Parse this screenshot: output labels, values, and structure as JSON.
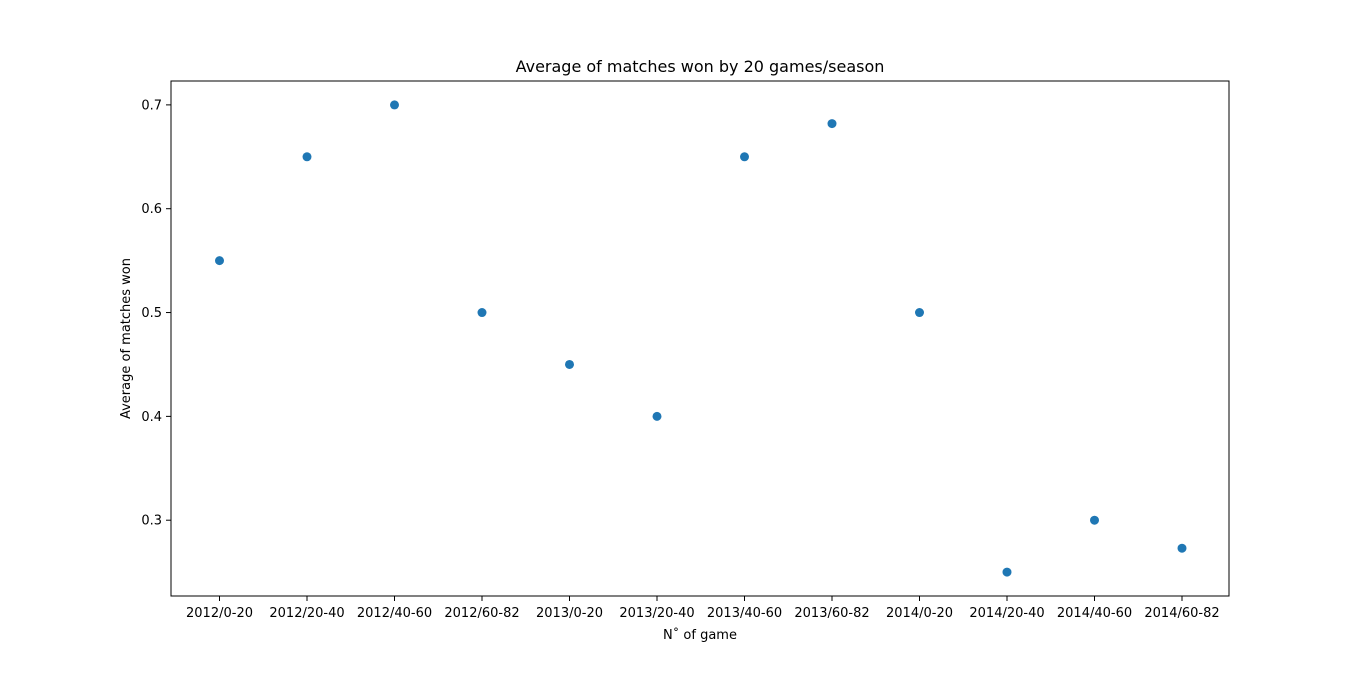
{
  "chart_data": {
    "type": "scatter",
    "title": "Average of matches won by 20 games/season",
    "xlabel": "N˚ of game",
    "ylabel": "Average of matches won",
    "categories": [
      "2012/0-20",
      "2012/20-40",
      "2012/40-60",
      "2012/60-82",
      "2013/0-20",
      "2013/20-40",
      "2013/40-60",
      "2013/60-82",
      "2014/0-20",
      "2014/20-40",
      "2014/40-60",
      "2014/60-82"
    ],
    "values": [
      0.55,
      0.65,
      0.7,
      0.5,
      0.45,
      0.4,
      0.65,
      0.682,
      0.5,
      0.25,
      0.3,
      0.273
    ],
    "ylim": [
      0.227,
      0.723
    ],
    "yticks": [
      0.3,
      0.4,
      0.5,
      0.6,
      0.7
    ],
    "ytick_labels": [
      "0.3",
      "0.4",
      "0.5",
      "0.6",
      "0.7"
    ],
    "grid": false,
    "legend": "none",
    "colors": {
      "marker": "#1f77b4",
      "axes": "#000000",
      "background": "#ffffff"
    }
  }
}
